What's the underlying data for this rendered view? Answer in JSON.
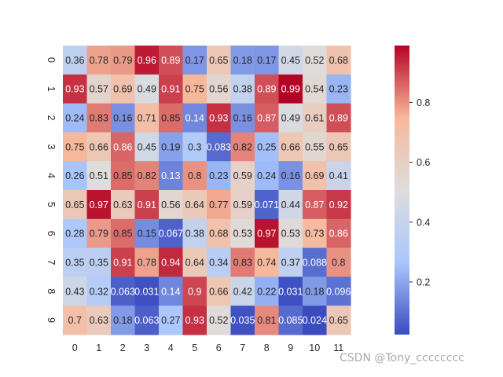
{
  "chart_data": {
    "type": "heatmap",
    "title": "",
    "xlabel": "",
    "ylabel": "",
    "x_categories": [
      "0",
      "1",
      "2",
      "3",
      "4",
      "5",
      "6",
      "7",
      "8",
      "9",
      "10",
      "11"
    ],
    "y_categories": [
      "0",
      "1",
      "2",
      "3",
      "4",
      "5",
      "6",
      "7",
      "8",
      "9"
    ],
    "values": [
      [
        0.36,
        0.78,
        0.79,
        0.96,
        0.89,
        0.17,
        0.65,
        0.18,
        0.17,
        0.45,
        0.52,
        0.68
      ],
      [
        0.93,
        0.57,
        0.69,
        0.49,
        0.91,
        0.75,
        0.56,
        0.38,
        0.89,
        0.99,
        0.54,
        0.23
      ],
      [
        0.24,
        0.83,
        0.16,
        0.71,
        0.85,
        0.14,
        0.93,
        0.16,
        0.87,
        0.49,
        0.61,
        0.89
      ],
      [
        0.75,
        0.66,
        0.86,
        0.45,
        0.19,
        0.3,
        0.083,
        0.82,
        0.25,
        0.66,
        0.55,
        0.65
      ],
      [
        0.26,
        0.51,
        0.85,
        0.82,
        0.13,
        0.8,
        0.23,
        0.59,
        0.24,
        0.16,
        0.69,
        0.41
      ],
      [
        0.65,
        0.97,
        0.63,
        0.91,
        0.56,
        0.64,
        0.77,
        0.59,
        0.071,
        0.44,
        0.87,
        0.92
      ],
      [
        0.28,
        0.79,
        0.85,
        0.15,
        0.067,
        0.38,
        0.68,
        0.53,
        0.97,
        0.53,
        0.73,
        0.86
      ],
      [
        0.35,
        0.35,
        0.91,
        0.78,
        0.94,
        0.64,
        0.34,
        0.83,
        0.74,
        0.37,
        0.088,
        0.8
      ],
      [
        0.43,
        0.32,
        0.063,
        0.031,
        0.14,
        0.9,
        0.66,
        0.42,
        0.22,
        0.031,
        0.18,
        0.096
      ],
      [
        0.7,
        0.63,
        0.18,
        0.063,
        0.27,
        0.93,
        0.52,
        0.035,
        0.81,
        0.085,
        0.024,
        0.65
      ]
    ],
    "annot": true,
    "colormap": "coolwarm",
    "colormap_stops": [
      "#3b4cc0",
      "#aac7fd",
      "#dddddd",
      "#f7b89c",
      "#b40426"
    ],
    "colorbar": {
      "range": [
        0.024,
        0.99
      ],
      "ticks": [
        0.2,
        0.4,
        0.6,
        0.8
      ],
      "tick_labels": [
        "0.2",
        "0.4",
        "0.6",
        "0.8"
      ],
      "placement": "right"
    },
    "grid": false
  },
  "watermark": {
    "text": "CSDN @Tony_cccccccc"
  }
}
